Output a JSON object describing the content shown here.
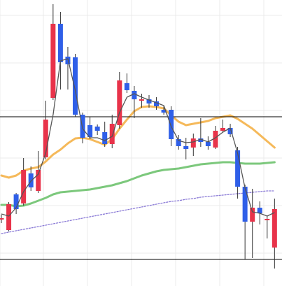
{
  "chart_data": {
    "type": "candlestick",
    "title": "",
    "xlabel": "",
    "ylabel": "",
    "grid": true,
    "ylim": [
      0,
      409
    ],
    "colors": {
      "up": "#e8334a",
      "down": "#2f5fe8",
      "wick": "#333333",
      "line_short": "#555555",
      "ma_mid": "#f5b95a",
      "ma_long": "#7cc87c",
      "ma_trend": "#8a7ad6",
      "level": "#000000",
      "grid": "#ebebeb"
    },
    "levels": [
      242,
      38
    ],
    "candles": [
      {
        "o": 97,
        "c": 97,
        "h": 102,
        "l": 90
      },
      {
        "o": 80,
        "c": 117,
        "h": 120,
        "l": 78
      },
      {
        "o": 131,
        "c": 110,
        "h": 133,
        "l": 103
      },
      {
        "o": 118,
        "c": 166,
        "h": 183,
        "l": 115
      },
      {
        "o": 161,
        "c": 141,
        "h": 171,
        "l": 136
      },
      {
        "o": 136,
        "c": 166,
        "h": 193,
        "l": 133
      },
      {
        "o": 184,
        "c": 238,
        "h": 265,
        "l": 181
      },
      {
        "o": 269,
        "c": 375,
        "h": 403,
        "l": 266
      },
      {
        "o": 375,
        "c": 320,
        "h": 392,
        "l": 281
      },
      {
        "o": 328,
        "c": 317,
        "h": 342,
        "l": 281
      },
      {
        "o": 327,
        "c": 245,
        "h": 332,
        "l": 242
      },
      {
        "o": 245,
        "c": 212,
        "h": 248,
        "l": 204
      },
      {
        "o": 230,
        "c": 213,
        "h": 242,
        "l": 210
      },
      {
        "o": 228,
        "c": 222,
        "h": 231,
        "l": 216
      },
      {
        "o": 220,
        "c": 203,
        "h": 235,
        "l": 199
      },
      {
        "o": 203,
        "c": 232,
        "h": 245,
        "l": 197
      },
      {
        "o": 230,
        "c": 294,
        "h": 306,
        "l": 225
      },
      {
        "o": 290,
        "c": 280,
        "h": 304,
        "l": 276
      },
      {
        "o": 279,
        "c": 267,
        "h": 286,
        "l": 240
      },
      {
        "o": 267,
        "c": 267,
        "h": 275,
        "l": 255
      },
      {
        "o": 267,
        "c": 261,
        "h": 273,
        "l": 255
      },
      {
        "o": 264,
        "c": 257,
        "h": 270,
        "l": 252
      },
      {
        "o": 252,
        "c": 248,
        "h": 257,
        "l": 245
      },
      {
        "o": 252,
        "c": 210,
        "h": 257,
        "l": 200
      },
      {
        "o": 210,
        "c": 200,
        "h": 216,
        "l": 195
      },
      {
        "o": 200,
        "c": 196,
        "h": 212,
        "l": 181
      },
      {
        "o": 198,
        "c": 211,
        "h": 218,
        "l": 186
      },
      {
        "o": 211,
        "c": 206,
        "h": 240,
        "l": 199
      },
      {
        "o": 206,
        "c": 200,
        "h": 214,
        "l": 195
      },
      {
        "o": 198,
        "c": 222,
        "h": 229,
        "l": 196
      },
      {
        "o": 222,
        "c": 226,
        "h": 238,
        "l": 220
      },
      {
        "o": 226,
        "c": 217,
        "h": 232,
        "l": 213
      },
      {
        "o": 194,
        "c": 142,
        "h": 199,
        "l": 125
      },
      {
        "o": 142,
        "c": 92,
        "h": 145,
        "l": 38
      },
      {
        "o": 92,
        "c": 112,
        "h": 139,
        "l": 40
      },
      {
        "o": 112,
        "c": 104,
        "h": 121,
        "l": 88
      },
      {
        "o": 95,
        "c": 96,
        "h": 100,
        "l": 68
      },
      {
        "o": 55,
        "c": 110,
        "h": 125,
        "l": 25
      }
    ],
    "series": [
      {
        "key": "short",
        "values": [
          103,
          100,
          112,
          135,
          150,
          160,
          190,
          245,
          322,
          325,
          280,
          225,
          212,
          212,
          208,
          214,
          248,
          270,
          275,
          270,
          266,
          262,
          258,
          228,
          208,
          205,
          206,
          210,
          206,
          212,
          220,
          226,
          190,
          140,
          106,
          104,
          100,
          105
        ]
      },
      {
        "key": "ma_mid",
        "values": [
          158,
          155,
          158,
          165,
          168,
          170,
          178,
          188,
          195,
          204,
          211,
          212,
          210,
          206,
          202,
          210,
          225,
          238,
          250,
          256,
          257,
          256,
          254,
          244,
          235,
          230,
          232,
          234,
          236,
          240,
          242,
          244,
          239,
          232,
          225,
          216,
          207,
          198
        ]
      },
      {
        "key": "ma_long",
        "values": [
          116,
          116,
          114,
          115,
          118,
          122,
          126,
          131,
          134,
          135,
          136,
          137,
          138,
          140,
          142,
          144,
          147,
          150,
          154,
          158,
          161,
          164,
          166,
          167,
          168,
          170,
          172,
          174,
          175,
          176,
          177,
          177,
          176,
          175,
          175,
          175,
          176,
          177
        ]
      },
      {
        "key": "ma_trend",
        "values": [
          75,
          77,
          79,
          81,
          83,
          85,
          87,
          89,
          91,
          93,
          95,
          97,
          99,
          101,
          103,
          105,
          107,
          109,
          111,
          113,
          115,
          117,
          119,
          121,
          122,
          124,
          125,
          127,
          128,
          129,
          130,
          131,
          132,
          133,
          134,
          135,
          136,
          136
        ]
      }
    ]
  }
}
